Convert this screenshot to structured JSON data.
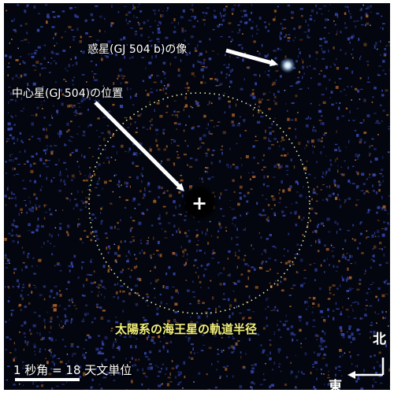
{
  "image": {
    "description_labels": {
      "planet_label": "惑星(GJ 504 b)の像",
      "star_label": "中心星(GJ 504)の位置",
      "orbit_label": "太陽系の海王星の軌道半径",
      "scale_label": "1 秒角 = 18 天文単位",
      "north_label": "北",
      "east_label": "東",
      "center_mark": "+"
    },
    "colors": {
      "background": "#03060f",
      "orbit_circle": "#e8eda0",
      "orbit_text": "#f2f07a",
      "arrow": "#ffffff",
      "speckle_blue": "#3a4bb8",
      "speckle_orange": "#b4662a"
    }
  }
}
